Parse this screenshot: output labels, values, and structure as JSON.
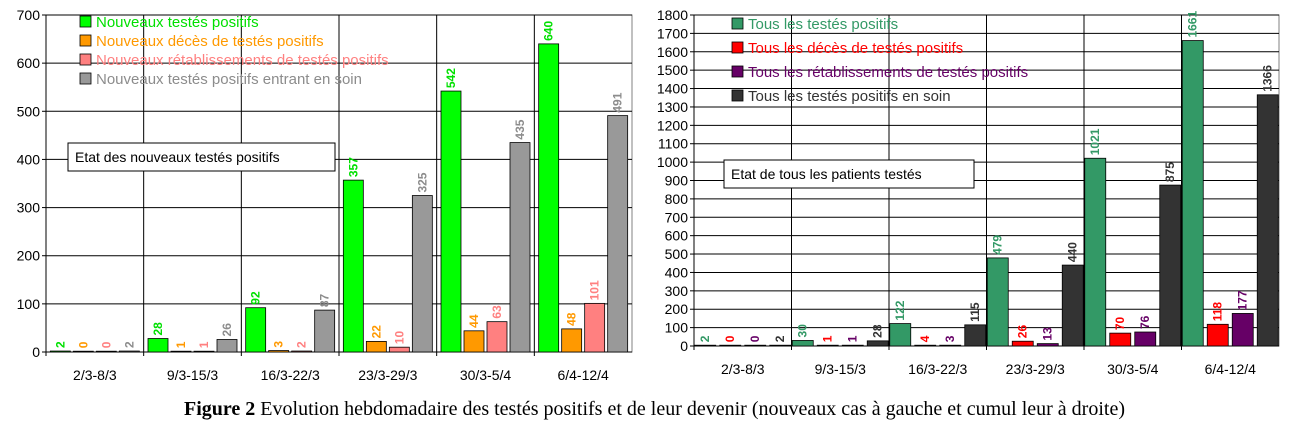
{
  "chart_data": [
    {
      "type": "bar",
      "categories": [
        "2/3-8/3",
        "9/3-15/3",
        "16/3-22/3",
        "23/3-29/3",
        "30/3-5/4",
        "6/4-12/4"
      ],
      "ylim": [
        0,
        700
      ],
      "yticks": [
        0,
        100,
        200,
        300,
        400,
        500,
        600,
        700
      ],
      "grid": true,
      "legend_placement": "top-left",
      "annotation": "Etat des nouveaux testés positifs",
      "series": [
        {
          "name": "Nouveaux testés positifs",
          "values": [
            2,
            28,
            92,
            357,
            542,
            640
          ],
          "color": "#00ff00",
          "label_color": "#00e000"
        },
        {
          "name": "Nouveaux décès de testés positifs",
          "values": [
            0,
            1,
            3,
            22,
            44,
            48
          ],
          "color": "#ff9900",
          "label_color": "#ff9900"
        },
        {
          "name": "Nouveaux rétablissements de testés positifs",
          "values": [
            0,
            1,
            2,
            10,
            63,
            101
          ],
          "color": "#ff8080",
          "label_color": "#ff8080"
        },
        {
          "name": "Nouveaux testés positifs entrant en soin",
          "values": [
            2,
            26,
            87,
            325,
            435,
            491
          ],
          "color": "#999999",
          "label_color": "#8c8c8c"
        }
      ]
    },
    {
      "type": "bar",
      "categories": [
        "2/3-8/3",
        "9/3-15/3",
        "16/3-22/3",
        "23/3-29/3",
        "30/3-5/4",
        "6/4-12/4"
      ],
      "ylim": [
        0,
        1800
      ],
      "yticks": [
        0,
        100,
        200,
        300,
        400,
        500,
        600,
        700,
        800,
        900,
        1000,
        1100,
        1200,
        1300,
        1400,
        1500,
        1600,
        1700,
        1800
      ],
      "grid": true,
      "legend_placement": "top-left",
      "annotation": "Etat de tous les patients testés",
      "series": [
        {
          "name": "Tous les testés positifs",
          "values": [
            2,
            30,
            122,
            479,
            1021,
            1661
          ],
          "color": "#339966",
          "label_color": "#339966"
        },
        {
          "name": "Tous les décès de testés positifs",
          "values": [
            0,
            1,
            4,
            26,
            70,
            118
          ],
          "color": "#ff0000",
          "label_color": "#ff0000"
        },
        {
          "name": "Tous les rétablissements de testés positifs",
          "values": [
            0,
            1,
            3,
            13,
            76,
            177
          ],
          "color": "#660066",
          "label_color": "#660066"
        },
        {
          "name": "Tous les testés positifs en soin",
          "values": [
            2,
            28,
            115,
            440,
            875,
            1366
          ],
          "color": "#333333",
          "label_color": "#333333"
        }
      ]
    }
  ],
  "caption": {
    "label": "Figure 2",
    "text": " Evolution hebdomadaire des testés positifs et de leur devenir (nouveaux cas à gauche et cumul leur à droite)"
  }
}
